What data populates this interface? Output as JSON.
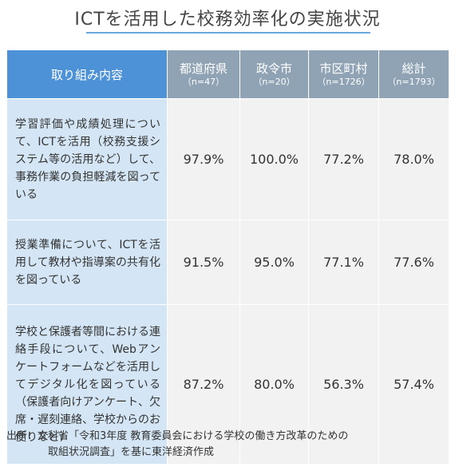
{
  "title": "ICTを活用した校務効率化の実施状況",
  "table": {
    "header": {
      "item": "取り組み内容",
      "columns": [
        {
          "label": "都道府県",
          "n": "（n=47）"
        },
        {
          "label": "政令市",
          "n": "（n=20）"
        },
        {
          "label": "市区町村",
          "n": "（n=1726）"
        },
        {
          "label": "総計",
          "n": "（n=1793）"
        }
      ]
    },
    "rows": [
      {
        "item": "学習評価や成績処理について、ICTを活用（校務支援システム等の活用など）して、事務作業の負担軽減を図っている",
        "values": [
          "97.9%",
          "100.0%",
          "77.2%",
          "78.0%"
        ]
      },
      {
        "item": "授業準備について、ICTを活用して教材や指導案の共有化を図っている",
        "values": [
          "91.5%",
          "95.0%",
          "77.1%",
          "77.6%"
        ]
      },
      {
        "item": "学校と保護者等間における連絡手段について、Webアンケートフォームなどを活用してデジタル化を図っている（保護者向けアンケート、欠席・遅刻連絡、学校からのお便りなど）",
        "values": [
          "87.2%",
          "80.0%",
          "56.3%",
          "57.4%"
        ]
      }
    ]
  },
  "source": {
    "line1": "出所：文科省「令和3年度 教育委員会における学校の働き方改革のための",
    "line2": "取組状況調査」を基に東洋経済作成"
  }
}
